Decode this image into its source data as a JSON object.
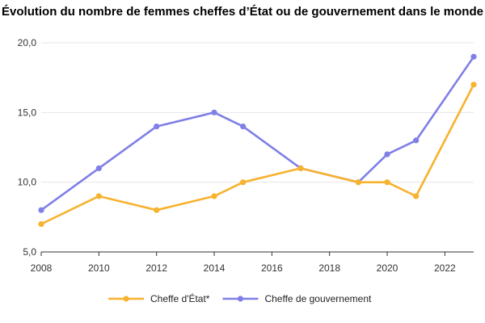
{
  "chart_data": {
    "type": "line",
    "title": "Évolution du nombre de femmes cheffes d’État ou de gouvernement dans le monde",
    "xlabel": "",
    "ylabel": "",
    "xlim": [
      2008,
      2023
    ],
    "ylim": [
      5,
      20
    ],
    "xticks": [
      2008,
      2010,
      2012,
      2014,
      2016,
      2018,
      2020,
      2022
    ],
    "yticks": [
      5,
      10,
      15,
      20
    ],
    "ytick_labels": [
      "5,0",
      "10,0",
      "15,0",
      "20,0"
    ],
    "grid": "horizontal",
    "legend_position": "bottom",
    "series": [
      {
        "name": "Cheffe d'État*",
        "color": "#F7B22E",
        "points": [
          [
            2008,
            7
          ],
          [
            2010,
            9
          ],
          [
            2012,
            8
          ],
          [
            2014,
            9
          ],
          [
            2015,
            10
          ],
          [
            2017,
            11
          ],
          [
            2019,
            10
          ],
          [
            2020,
            10
          ],
          [
            2021,
            9
          ],
          [
            2023,
            17
          ]
        ]
      },
      {
        "name": "Cheffe de gouvernement",
        "color": "#7F7FE8",
        "points": [
          [
            2008,
            8
          ],
          [
            2010,
            11
          ],
          [
            2012,
            14
          ],
          [
            2014,
            15
          ],
          [
            2015,
            14
          ],
          [
            2017,
            11
          ],
          [
            2019,
            10
          ],
          [
            2020,
            12
          ],
          [
            2021,
            13
          ],
          [
            2023,
            19
          ]
        ]
      }
    ]
  }
}
